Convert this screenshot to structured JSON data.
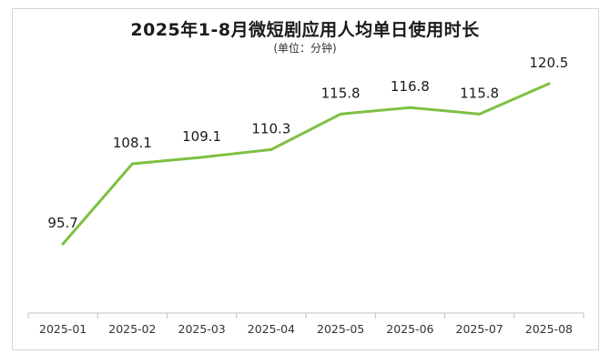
{
  "chart_data": {
    "type": "line",
    "title": "2025年1-8月微短剧应用人均单日使用时长",
    "subtitle": "(单位：分钟)",
    "categories": [
      "2025-01",
      "2025-02",
      "2025-03",
      "2025-04",
      "2025-05",
      "2025-06",
      "2025-07",
      "2025-08"
    ],
    "series": [
      {
        "values": [
          95.7,
          108.1,
          109.1,
          110.3,
          115.8,
          116.8,
          115.8,
          120.5
        ]
      }
    ],
    "value_labels": [
      "95.7",
      "108.1",
      "109.1",
      "110.3",
      "115.8",
      "116.8",
      "115.8",
      "120.5"
    ],
    "ylim": [
      85,
      125
    ],
    "grid": false,
    "line_color": "#7dc142"
  }
}
